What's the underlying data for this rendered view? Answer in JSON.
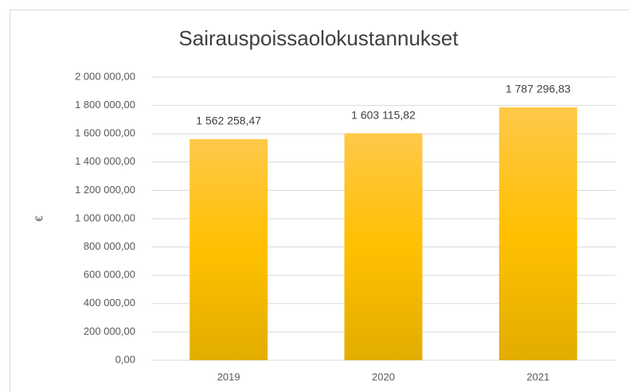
{
  "chart_data": {
    "type": "bar",
    "title": "Sairauspoissaolokustannukset",
    "y_label": "€",
    "categories": [
      "2019",
      "2020",
      "2021"
    ],
    "values": [
      1562258.47,
      1603115.82,
      1787296.83
    ],
    "value_labels": [
      "1 562 258,47",
      "1 603 115,82",
      "1 787 296,83"
    ],
    "color": "#ffc000",
    "ylim": [
      0,
      2000000
    ],
    "yticks": [
      {
        "value": 0,
        "label": "0,00"
      },
      {
        "value": 200000,
        "label": "200 000,00"
      },
      {
        "value": 400000,
        "label": "400 000,00"
      },
      {
        "value": 600000,
        "label": "600 000,00"
      },
      {
        "value": 800000,
        "label": "800 000,00"
      },
      {
        "value": 1000000,
        "label": "1 000 000,00"
      },
      {
        "value": 1200000,
        "label": "1 200 000,00"
      },
      {
        "value": 1400000,
        "label": "1 400 000,00"
      },
      {
        "value": 1600000,
        "label": "1 600 000,00"
      },
      {
        "value": 1800000,
        "label": "1 800 000,00"
      },
      {
        "value": 2000000,
        "label": "2 000 000,00"
      }
    ],
    "grid": true
  }
}
